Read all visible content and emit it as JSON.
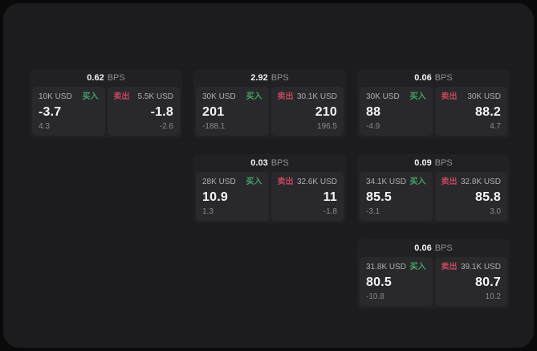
{
  "labels": {
    "bps": "BPS",
    "buy": "买入",
    "sell": "卖出"
  },
  "colors": {
    "buy": "#45a169",
    "sell": "#c24760",
    "surface": "#1c1c1e",
    "card": "#212123",
    "tile": "#29292b"
  },
  "cards": [
    {
      "bps": "0.62",
      "buy": {
        "amount": "10K USD",
        "value": "-3.7",
        "sub": "4.3"
      },
      "sell": {
        "amount": "5.5K USD",
        "value": "-1.8",
        "sub": "-2.6"
      }
    },
    {
      "bps": "2.92",
      "buy": {
        "amount": "30K USD",
        "value": "201",
        "sub": "-188.1"
      },
      "sell": {
        "amount": "30.1K USD",
        "value": "210",
        "sub": "196.5"
      }
    },
    {
      "bps": "0.06",
      "buy": {
        "amount": "30K USD",
        "value": "88",
        "sub": "-4.9"
      },
      "sell": {
        "amount": "30K USD",
        "value": "88.2",
        "sub": "4.7"
      }
    },
    {
      "bps": "0.03",
      "buy": {
        "amount": "28K USD",
        "value": "10.9",
        "sub": "1.3"
      },
      "sell": {
        "amount": "32.6K USD",
        "value": "11",
        "sub": "-1.8"
      }
    },
    {
      "bps": "0.09",
      "buy": {
        "amount": "34.1K USD",
        "value": "85.5",
        "sub": "-3.1"
      },
      "sell": {
        "amount": "32.8K USD",
        "value": "85.8",
        "sub": "3.0"
      }
    },
    {
      "bps": "0.06",
      "buy": {
        "amount": "31.8K USD",
        "value": "80.5",
        "sub": "-10.8"
      },
      "sell": {
        "amount": "39.1K USD",
        "value": "80.7",
        "sub": "10.2"
      }
    }
  ]
}
